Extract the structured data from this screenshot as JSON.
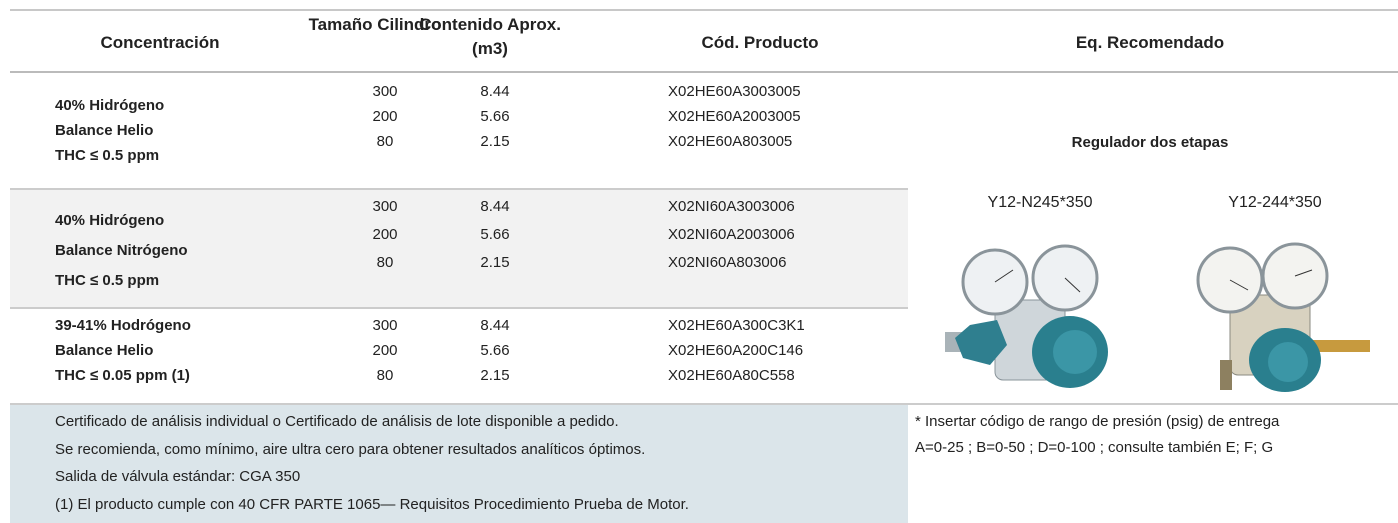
{
  "table": {
    "header": [
      "Concentración",
      "Tamaño Cilindro",
      "Contenido Aprox. (m3)",
      "Cód. Producto",
      "Eq. Recomendado"
    ],
    "rows": [
      {
        "concentration": [
          "40% Hidrógeno",
          "Balance Helio",
          "THC ≤ 0.5 ppm"
        ],
        "sizes": [
          "300",
          "200",
          "80"
        ],
        "contents": [
          "8.44",
          "5.66",
          "2.15"
        ],
        "codes": [
          "X02HE60A3003005",
          "X02HE60A2003005",
          "X02HE60A803005"
        ]
      },
      {
        "concentration": [
          "40% Hidrógeno",
          "Balance Nitrógeno",
          "THC ≤ 0.5 ppm"
        ],
        "sizes": [
          "300",
          "200",
          "80"
        ],
        "contents": [
          "8.44",
          "5.66",
          "2.15"
        ],
        "codes": [
          "X02NI60A3003006",
          "X02NI60A2003006",
          "X02NI60A803006"
        ]
      },
      {
        "concentration": [
          "39-41% Hodrógeno",
          "Balance Helio",
          "THC ≤ 0.05 ppm (1)"
        ],
        "sizes": [
          "300",
          "200",
          "80"
        ],
        "contents": [
          "8.44",
          "5.66",
          "2.15"
        ],
        "codes": [
          "X02HE60A300C3K1",
          "X02HE60A200C146",
          "X02HE60A80C558"
        ]
      }
    ],
    "recommended": {
      "title": "Regulador dos etapas",
      "items": [
        "Y12-N245*350",
        "Y12-244*350"
      ]
    },
    "notes": [
      "Certificado de análisis individual o Certificado de análisis de lote disponible a pedido.",
      "Se recomienda, como mínimo, aire ultra cero para obtener resultados analíticos óptimos.",
      "Salida de válvula estándar: CGA 350",
      "(1) El producto cumple con 40 CFR PARTE 1065— Requisitos Procedimiento Prueba de Motor."
    ],
    "pressure_note": [
      "* Insertar código de rango de presión (psig) de entrega",
      "A=0-25 ; B=0-50 ; D=0-100 ; consulte también E; F; G"
    ]
  }
}
